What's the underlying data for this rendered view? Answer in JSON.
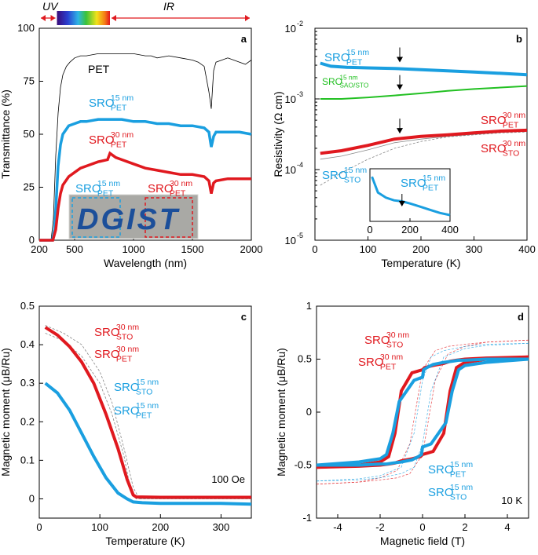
{
  "colors": {
    "pet": "#000000",
    "sro15": "#1a9fe0",
    "sro30": "#e0191f",
    "sao": "#22c022",
    "gray": "#888888",
    "bracket": "#e0191f"
  },
  "chart_data": [
    {
      "panel": "a",
      "type": "line",
      "xlabel": "Wavelength (nm)",
      "ylabel": "Transmittance (%)",
      "xlim": [
        200,
        2000
      ],
      "ylim": [
        0,
        100
      ],
      "xticks": [
        "200",
        "500",
        "1000",
        "1500",
        "2000"
      ],
      "yticks": [
        "0",
        "25",
        "50",
        "75",
        "100"
      ],
      "bands": {
        "uv": "UV",
        "ir": "IR"
      },
      "labels": {
        "pet": "PET",
        "sro15_main": "SRO",
        "sro15_sup": "15 nm",
        "sro15_sub": "PET",
        "sro30_main": "SRO",
        "sro30_sup": "30 nm",
        "sro30_sub": "PET"
      },
      "inset": {
        "text": "DGIST",
        "left_label_main": "SRO",
        "left_label_sup": "15 nm",
        "left_label_sub": "PET",
        "right_label_main": "SRO",
        "right_label_sup": "30 nm",
        "right_label_sub": "PET"
      },
      "series": [
        {
          "name": "PET",
          "x": [
            200,
            300,
            320,
            340,
            360,
            380,
            400,
            430,
            460,
            500,
            550,
            600,
            700,
            800,
            900,
            1000,
            1100,
            1150,
            1200,
            1300,
            1400,
            1500,
            1550,
            1600,
            1640,
            1660,
            1680,
            1700,
            1750,
            1800,
            1850,
            1900,
            1950,
            2000
          ],
          "y": [
            0,
            0,
            10,
            40,
            60,
            72,
            78,
            82,
            84,
            86,
            87,
            87,
            88,
            88,
            88,
            88,
            87,
            87,
            86,
            87,
            86,
            85,
            84,
            82,
            70,
            62,
            80,
            84,
            85,
            86,
            85,
            84,
            83,
            85
          ]
        },
        {
          "name": "SRO 15 nm PET",
          "x": [
            200,
            310,
            330,
            345,
            360,
            380,
            400,
            450,
            500,
            550,
            600,
            700,
            800,
            900,
            1000,
            1100,
            1200,
            1300,
            1400,
            1500,
            1600,
            1640,
            1660,
            1680,
            1700,
            1750,
            1800,
            1900,
            2000
          ],
          "y": [
            0,
            0,
            5,
            20,
            35,
            45,
            50,
            54,
            55,
            56,
            56,
            57,
            57,
            57,
            56,
            56,
            55,
            55,
            54,
            54,
            53,
            51,
            44,
            49,
            51,
            51,
            51,
            51,
            50
          ]
        },
        {
          "name": "SRO 30 nm PET",
          "x": [
            200,
            315,
            340,
            360,
            380,
            400,
            450,
            500,
            550,
            600,
            700,
            780,
            800,
            850,
            900,
            1000,
            1100,
            1200,
            1300,
            1400,
            1500,
            1600,
            1640,
            1660,
            1680,
            1700,
            1800,
            1900,
            2000
          ],
          "y": [
            0,
            0,
            5,
            15,
            22,
            26,
            30,
            32,
            34,
            35,
            37,
            38,
            41,
            39,
            38,
            36,
            34,
            33,
            32,
            31,
            31,
            30,
            28,
            22,
            27,
            28,
            29,
            29,
            29
          ]
        }
      ]
    },
    {
      "panel": "b",
      "type": "line",
      "yscale": "log",
      "xlabel": "Temperature (K)",
      "ylabel": "Resistivity (Ω cm)",
      "xlim": [
        0,
        400
      ],
      "ylim_exp": [
        -5,
        -2
      ],
      "xticks": [
        "0",
        "100",
        "200",
        "300",
        "400"
      ],
      "ytick_base": "10",
      "ytick_exps": [
        "-5",
        "-4",
        "-3",
        "-2"
      ],
      "labels": {
        "s15pet_main": "SRO",
        "s15pet_sup": "15 nm",
        "s15pet_sub": "PET",
        "sao_main": "SRO",
        "sao_sup": "15 nm",
        "sao_sub": "SAO/STO",
        "s30pet_main": "SRO",
        "s30pet_sup": "30 nm",
        "s30pet_sub": "PET",
        "s30sto_main": "SRO",
        "s30sto_sup": "30 nm",
        "s30sto_sub": "STO",
        "s15sto_main": "SRO",
        "s15sto_sup": "15 nm",
        "s15sto_sub": "STO",
        "inset_main": "SRO",
        "inset_sup": "15 nm",
        "inset_sub": "PET"
      },
      "inset": {
        "xticks": [
          "0",
          "200",
          "400"
        ],
        "xlim": [
          0,
          400
        ],
        "x": [
          10,
          40,
          80,
          120,
          160,
          200,
          250,
          300,
          350,
          400
        ],
        "y": [
          0.85,
          0.55,
          0.45,
          0.4,
          0.38,
          0.34,
          0.28,
          0.22,
          0.16,
          0.12
        ]
      },
      "series": [
        {
          "name": "SRO 15 nm PET",
          "x": [
            10,
            30,
            60,
            100,
            150,
            200,
            250,
            300,
            350,
            400
          ],
          "y": [
            0.0032,
            0.0029,
            0.0028,
            0.00275,
            0.0027,
            0.0026,
            0.0025,
            0.0024,
            0.0023,
            0.0022
          ]
        },
        {
          "name": "SRO 15 nm SAO/STO",
          "x": [
            10,
            50,
            100,
            150,
            200,
            250,
            300,
            350,
            400
          ],
          "y": [
            0.001,
            0.001,
            0.00105,
            0.00112,
            0.0012,
            0.0013,
            0.00138,
            0.00145,
            0.00152
          ]
        },
        {
          "name": "SRO 30 nm PET",
          "x": [
            10,
            50,
            100,
            150,
            200,
            250,
            300,
            350,
            400
          ],
          "y": [
            0.00017,
            0.000185,
            0.00022,
            0.00027,
            0.000295,
            0.00031,
            0.00033,
            0.00035,
            0.00036
          ]
        },
        {
          "name": "SRO 30 nm STO",
          "x": [
            10,
            50,
            100,
            150,
            200,
            250,
            300,
            350,
            400
          ],
          "y": [
            0.00014,
            0.000155,
            0.00019,
            0.00024,
            0.00027,
            0.000295,
            0.000315,
            0.000335,
            0.00035
          ]
        },
        {
          "name": "SRO 15 nm STO",
          "x": [
            10,
            50,
            100,
            150,
            200,
            250,
            300,
            350,
            400
          ],
          "y": [
            6e-05,
            9e-05,
            0.00014,
            0.0002,
            0.00025,
            0.00029,
            0.00031,
            0.00033,
            0.00034
          ]
        }
      ],
      "arrows_T": [
        160,
        160,
        160
      ]
    },
    {
      "panel": "c",
      "type": "line",
      "xlabel": "Temperature (K)",
      "ylabel": "Magnetic moment (μB/Ru)",
      "xlim": [
        0,
        350
      ],
      "ylim": [
        -0.05,
        0.5
      ],
      "xticks": [
        "0",
        "100",
        "200",
        "300"
      ],
      "yticks": [
        "0",
        "0.1",
        "0.2",
        "0.3",
        "0.4",
        "0.5"
      ],
      "annotation": "100 Oe",
      "labels": {
        "s30sto_main": "SRO",
        "s30sto_sup": "30 nm",
        "s30sto_sub": "STO",
        "s30pet_main": "SRO",
        "s30pet_sup": "30 nm",
        "s30pet_sub": "PET",
        "s15sto_main": "SRO",
        "s15sto_sup": "15 nm",
        "s15sto_sub": "STO",
        "s15pet_main": "SRO",
        "s15pet_sup": "15 nm",
        "s15pet_sub": "PET"
      },
      "series": [
        {
          "name": "SRO 30 nm PET",
          "x": [
            10,
            30,
            50,
            70,
            90,
            110,
            130,
            145,
            155,
            160,
            200,
            250,
            300,
            350
          ],
          "y": [
            0.445,
            0.425,
            0.395,
            0.355,
            0.3,
            0.22,
            0.13,
            0.05,
            0.01,
            0.005,
            0.004,
            0.004,
            0.004,
            0.004
          ]
        },
        {
          "name": "SRO 15 nm PET",
          "x": [
            10,
            30,
            50,
            70,
            90,
            110,
            130,
            145,
            155,
            170,
            200,
            250,
            300,
            350
          ],
          "y": [
            0.3,
            0.275,
            0.23,
            0.17,
            0.11,
            0.055,
            0.015,
            0.0,
            -0.008,
            -0.01,
            -0.012,
            -0.012,
            -0.012,
            -0.014
          ]
        },
        {
          "name": "SRO 30 nm STO",
          "x": [
            10,
            40,
            70,
            100,
            120,
            140,
            155,
            165,
            200,
            350
          ],
          "y": [
            0.45,
            0.43,
            0.4,
            0.33,
            0.25,
            0.13,
            0.03,
            0.0,
            0.0,
            0.0
          ]
        },
        {
          "name": "SRO 15 nm STO",
          "x": [
            10,
            40,
            70,
            100,
            120,
            140,
            150,
            160,
            200,
            350
          ],
          "y": [
            0.43,
            0.41,
            0.37,
            0.3,
            0.22,
            0.11,
            0.03,
            0.0,
            0.0,
            0.0
          ]
        }
      ]
    },
    {
      "panel": "d",
      "type": "line",
      "xlabel": "Magnetic field (T)",
      "ylabel": "Magnetic moment (μB/Ru)",
      "xlim": [
        -5,
        5
      ],
      "ylim": [
        -1,
        1
      ],
      "xticks": [
        "-4",
        "-2",
        "0",
        "2",
        "4"
      ],
      "yticks": [
        "-1",
        "-0.5",
        "0",
        "0.5",
        "1"
      ],
      "annotation": "10 K",
      "labels": {
        "s30sto_main": "SRO",
        "s30sto_sup": "30 nm",
        "s30sto_sub": "STO",
        "s30pet_main": "SRO",
        "s30pet_sup": "30 nm",
        "s30pet_sub": "PET",
        "s15pet_main": "SRO",
        "s15pet_sup": "15 nm",
        "s15pet_sub": "PET",
        "s15sto_main": "SRO",
        "s15sto_sup": "15 nm",
        "s15sto_sub": "STO"
      },
      "series": [
        {
          "name": "SRO 30 nm PET",
          "x": [
            -5,
            -3,
            -2,
            -1.6,
            -1.3,
            -1.0,
            -0.5,
            0,
            0.1,
            0.5,
            1.0,
            1.3,
            1.6,
            2,
            3,
            5
          ],
          "y": [
            -0.52,
            -0.5,
            -0.47,
            -0.42,
            -0.2,
            0.2,
            0.37,
            0.4,
            0.42,
            0.44,
            0.46,
            0.48,
            0.49,
            0.5,
            0.51,
            0.52
          ],
          "x2": [
            5,
            3,
            2,
            1.6,
            1.3,
            1.0,
            0.5,
            0,
            -0.1,
            -0.5,
            -1.0,
            -1.3,
            -1.6,
            -2,
            -3,
            -5
          ],
          "y2": [
            0.52,
            0.5,
            0.47,
            0.42,
            0.2,
            -0.2,
            -0.37,
            -0.4,
            -0.42,
            -0.44,
            -0.46,
            -0.48,
            -0.49,
            -0.5,
            -0.51,
            -0.52
          ]
        },
        {
          "name": "SRO 15 nm PET",
          "x": [
            -5,
            -3,
            -2,
            -1.7,
            -1.4,
            -1.1,
            -0.4,
            0,
            0.05,
            0.2,
            0.5,
            1.0,
            1.4,
            1.7,
            2.0,
            3,
            5
          ],
          "y": [
            -0.5,
            -0.47,
            -0.44,
            -0.4,
            -0.2,
            0.1,
            0.3,
            0.33,
            0.4,
            0.42,
            0.45,
            0.47,
            0.48,
            0.49,
            0.49,
            0.5,
            0.5
          ],
          "x2": [
            5,
            3,
            2,
            1.7,
            1.4,
            1.1,
            0.4,
            0,
            -0.05,
            -0.2,
            -0.5,
            -1.0,
            -1.4,
            -1.7,
            -2.0,
            -3,
            -5
          ],
          "y2": [
            0.5,
            0.47,
            0.44,
            0.4,
            0.2,
            -0.1,
            -0.3,
            -0.33,
            -0.4,
            -0.42,
            -0.45,
            -0.47,
            -0.48,
            -0.49,
            -0.49,
            -0.5,
            -0.5
          ]
        },
        {
          "name": "SRO 30 nm STO",
          "x": [
            -5,
            -3,
            -2,
            -1.2,
            -0.6,
            0,
            0.6,
            1.2,
            2,
            3,
            5
          ],
          "y": [
            -0.68,
            -0.66,
            -0.62,
            -0.55,
            -0.3,
            0.4,
            0.58,
            0.62,
            0.64,
            0.66,
            0.68
          ]
        },
        {
          "name": "SRO 15 nm STO",
          "x": [
            -5,
            -3,
            -2,
            -1.0,
            -0.4,
            0,
            0.4,
            1.0,
            2,
            3,
            5
          ],
          "y": [
            -0.65,
            -0.63,
            -0.6,
            -0.52,
            -0.2,
            0.3,
            0.52,
            0.58,
            0.62,
            0.64,
            0.65
          ]
        }
      ]
    }
  ]
}
